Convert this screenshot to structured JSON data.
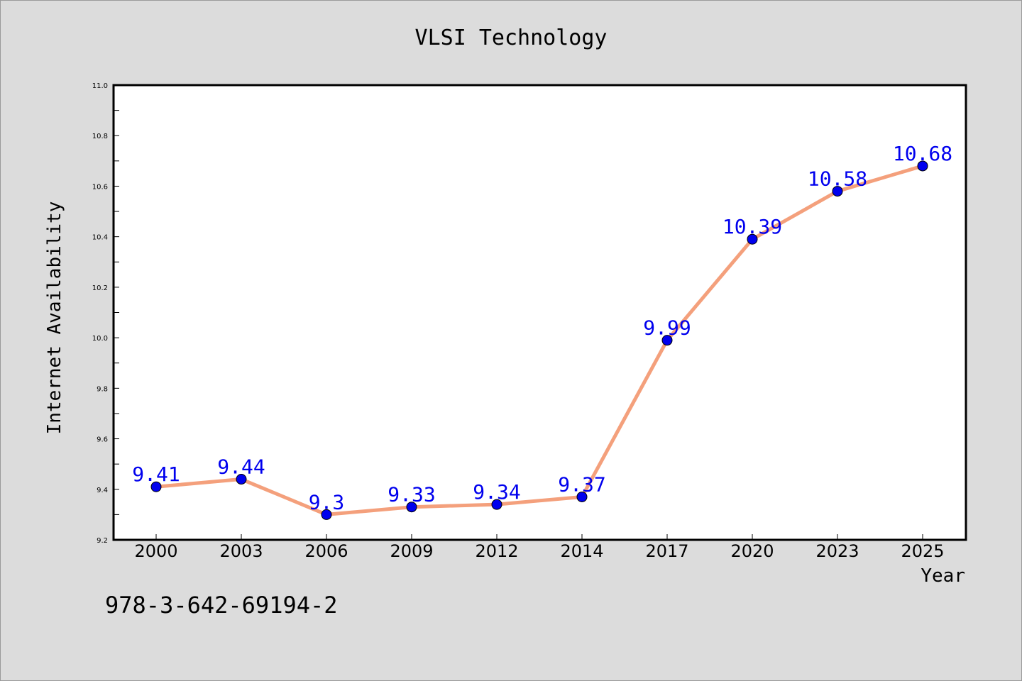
{
  "chart_data": {
    "type": "line",
    "title": "VLSI Technology",
    "xlabel": "Year",
    "ylabel": "Internet Availability",
    "categories": [
      "2000",
      "2003",
      "2006",
      "2009",
      "2012",
      "2014",
      "2017",
      "2020",
      "2023",
      "2025"
    ],
    "values": [
      9.41,
      9.44,
      9.3,
      9.33,
      9.34,
      9.37,
      9.99,
      10.39,
      10.58,
      10.68
    ],
    "value_labels": [
      "9.41",
      "9.44",
      "9.3",
      "9.33",
      "9.34",
      "9.37",
      "9.99",
      "10.39",
      "10.58",
      "10.68"
    ],
    "ylim": [
      9.2,
      11.0
    ],
    "yticks": [
      "9.2",
      "9.4",
      "9.6",
      "9.8",
      "10.0",
      "10.2",
      "10.4",
      "10.6",
      "10.8",
      "11.0"
    ],
    "grid": false,
    "line_color": "#f4a07c",
    "marker_color": "#0000ee",
    "label_color": "#0000ee"
  },
  "footnote": "978-3-642-69194-2"
}
